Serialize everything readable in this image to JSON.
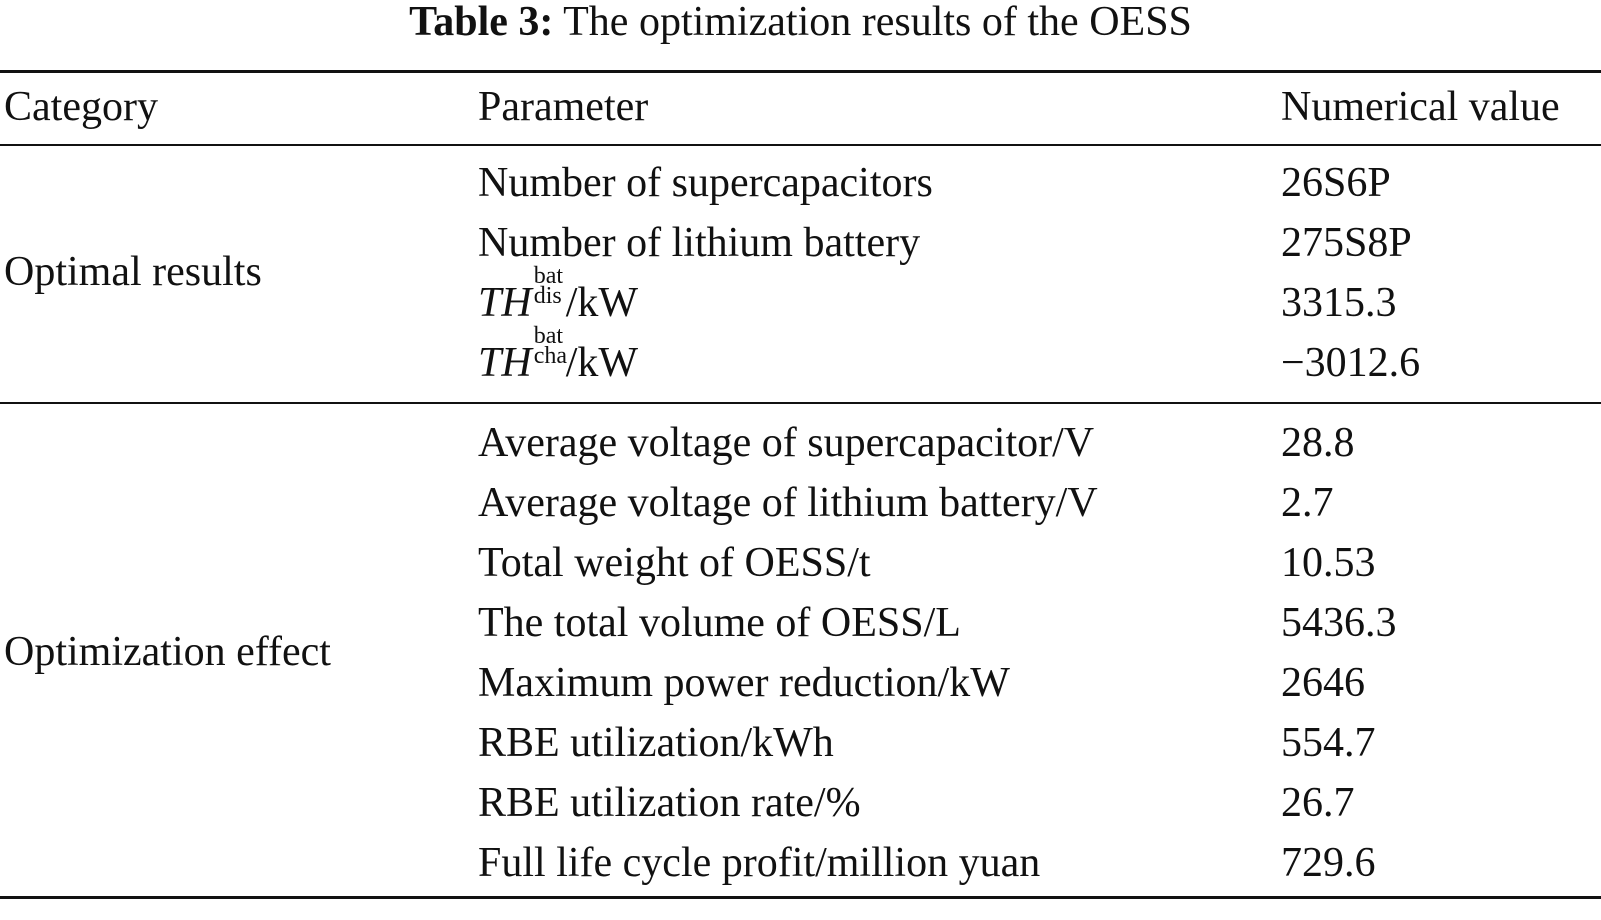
{
  "caption": {
    "label": "Table 3:",
    "title": "The optimization results of the OESS"
  },
  "table": {
    "headers": {
      "category": "Category",
      "parameter": "Parameter",
      "value": "Numerical value"
    },
    "groups": [
      {
        "category": "Optimal results",
        "rows": [
          {
            "parameter": "Number of supercapacitors",
            "value": "26S6P"
          },
          {
            "parameter": "Number of lithium battery",
            "value": "275S8P"
          },
          {
            "parameter_symbol": "TH",
            "parameter_sup": "bat",
            "parameter_sub": "dis",
            "parameter_unit": "/kW",
            "value": "3315.3"
          },
          {
            "parameter_symbol": "TH",
            "parameter_sup": "bat",
            "parameter_sub": "cha",
            "parameter_unit": "/kW",
            "value": "−3012.6"
          }
        ]
      },
      {
        "category": "Optimization effect",
        "rows": [
          {
            "parameter": "Average voltage of supercapacitor/V",
            "value": "28.8"
          },
          {
            "parameter": "Average voltage of lithium battery/V",
            "value": "2.7"
          },
          {
            "parameter": "Total weight of OESS/t",
            "value": "10.53"
          },
          {
            "parameter": "The total volume of OESS/L",
            "value": "5436.3"
          },
          {
            "parameter": "Maximum power reduction/kW",
            "value": "2646"
          },
          {
            "parameter": "RBE utilization/kWh",
            "value": "554.7"
          },
          {
            "parameter": "RBE utilization rate/%",
            "value": "26.7"
          },
          {
            "parameter": "Full life cycle profit/million yuan",
            "value": "729.6"
          }
        ]
      }
    ]
  }
}
